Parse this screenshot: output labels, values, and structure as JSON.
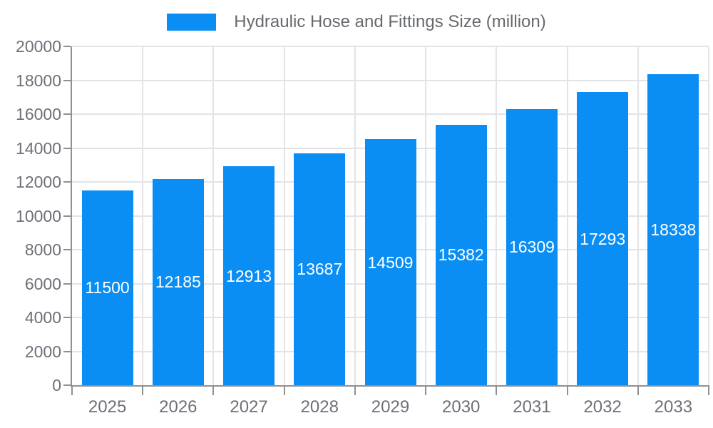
{
  "legend": {
    "label": "Hydraulic Hose and Fittings Size (million)"
  },
  "chart_data": {
    "type": "bar",
    "title": "Hydraulic Hose and Fittings Size (million)",
    "categories": [
      "2025",
      "2026",
      "2027",
      "2028",
      "2029",
      "2030",
      "2031",
      "2032",
      "2033"
    ],
    "values": [
      11500,
      12185,
      12913,
      13687,
      14509,
      15382,
      16309,
      17293,
      18338
    ],
    "series": [
      {
        "name": "Hydraulic Hose and Fittings Size (million)",
        "values": [
          11500,
          12185,
          12913,
          13687,
          14509,
          15382,
          16309,
          17293,
          18338
        ]
      }
    ],
    "xlabel": "",
    "ylabel": "",
    "ylim": [
      0,
      20000
    ],
    "ytick_step": 2000,
    "yticks": [
      0,
      2000,
      4000,
      6000,
      8000,
      10000,
      12000,
      14000,
      16000,
      18000,
      20000
    ],
    "grid": true,
    "legend_position": "top-center",
    "value_labels": "inside-bars-centered",
    "colors": {
      "bar": "#0a8ef4",
      "grid": "#e3e3e8",
      "axis": "#909090",
      "tick_label": "#6e7079",
      "legend_text": "#66696d",
      "bar_value_text": "#ffffff"
    }
  }
}
